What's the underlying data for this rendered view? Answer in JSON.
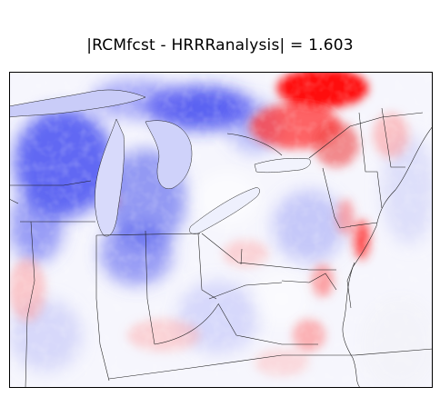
{
  "figure": {
    "title": "|RCMfcst - HRRRanalysis| = 1.603"
  },
  "colormap": {
    "name": "bwr",
    "negative_color": "#0000ff",
    "neutral_color": "#ffffff",
    "positive_color": "#ff0000"
  },
  "map": {
    "region": "Great Lakes / Northeastern US",
    "features": [
      "Lake Superior",
      "Lake Michigan",
      "Lake Huron",
      "Lake Erie",
      "Lake Ontario",
      "state borders",
      "coastline"
    ]
  }
}
